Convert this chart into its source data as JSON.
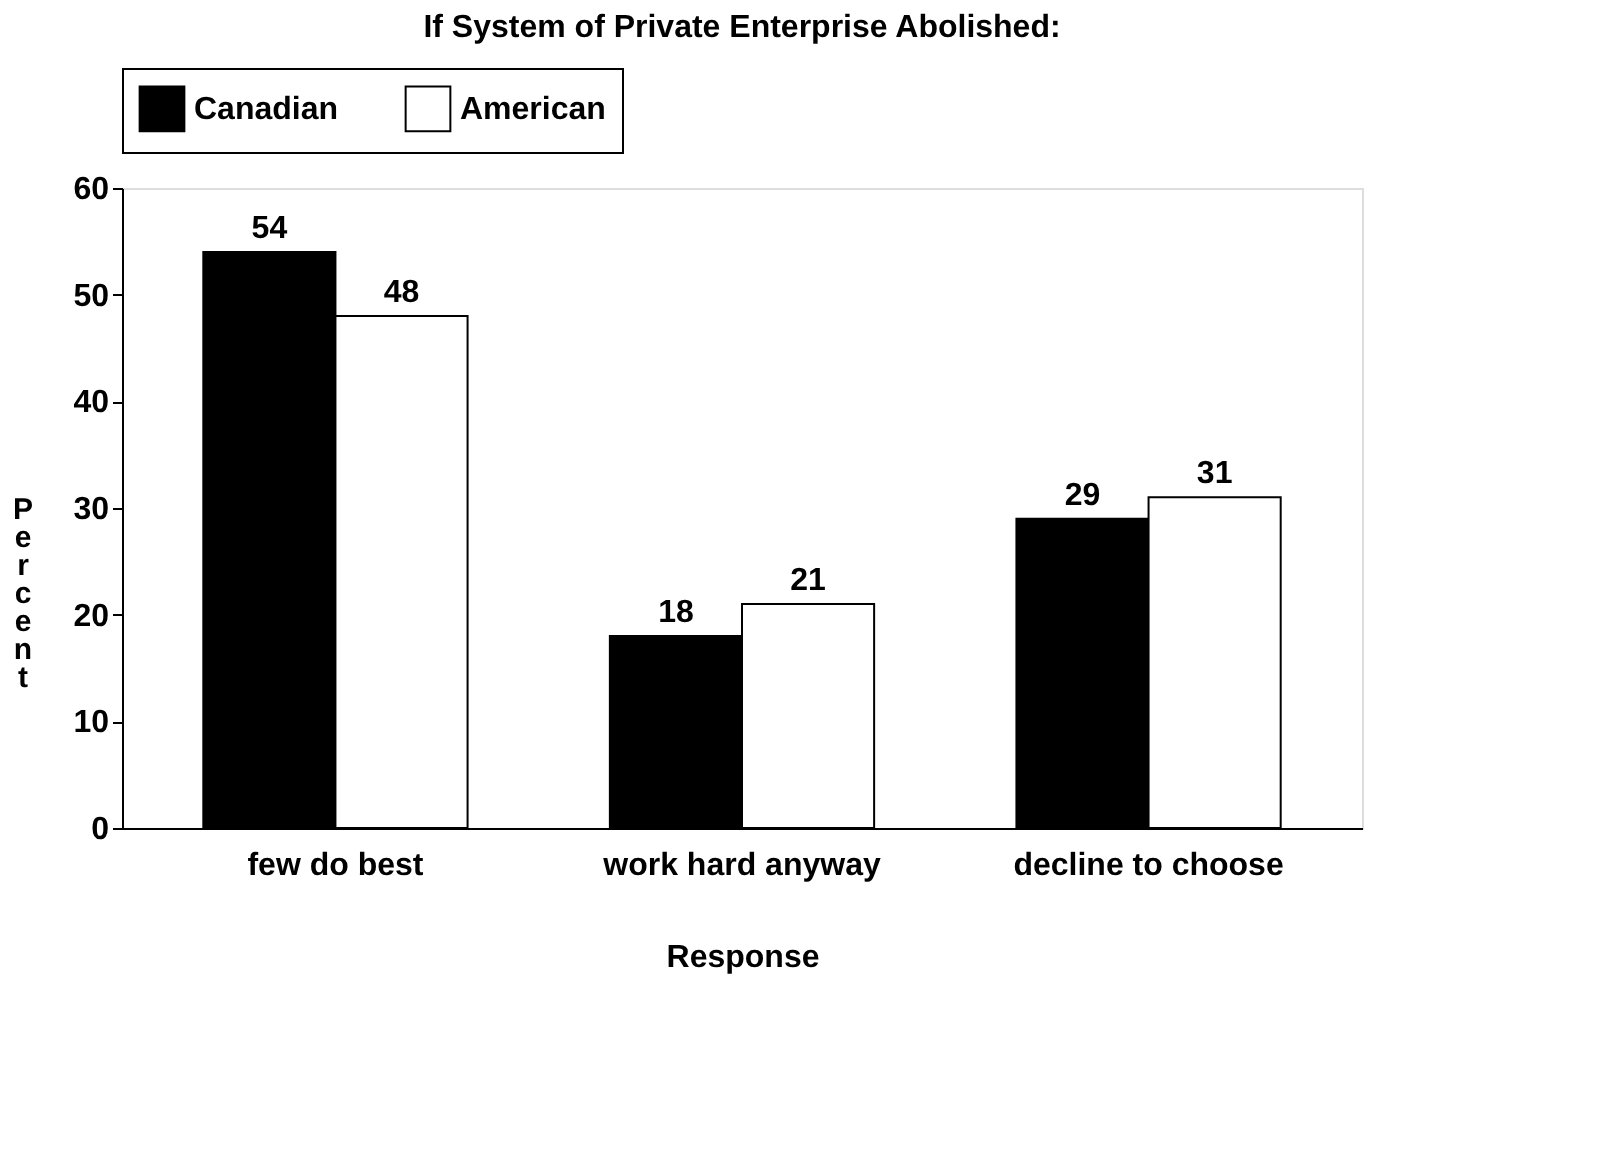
{
  "chart_data": {
    "type": "bar",
    "title": "If System of Private Enterprise Abolished:",
    "xlabel": "Response",
    "ylabel": "Percent",
    "categories": [
      "few do best",
      "work hard anyway",
      "decline to choose"
    ],
    "series": [
      {
        "name": "Canadian",
        "color": "#000000",
        "values": [
          54,
          18,
          29
        ]
      },
      {
        "name": "American",
        "color": "#ffffff",
        "values": [
          48,
          21,
          31
        ]
      }
    ],
    "ylim": [
      0,
      60
    ],
    "yticks": [
      0,
      10,
      20,
      30,
      40,
      50,
      60
    ],
    "data_labels": true,
    "grid": false,
    "legend": "top"
  }
}
